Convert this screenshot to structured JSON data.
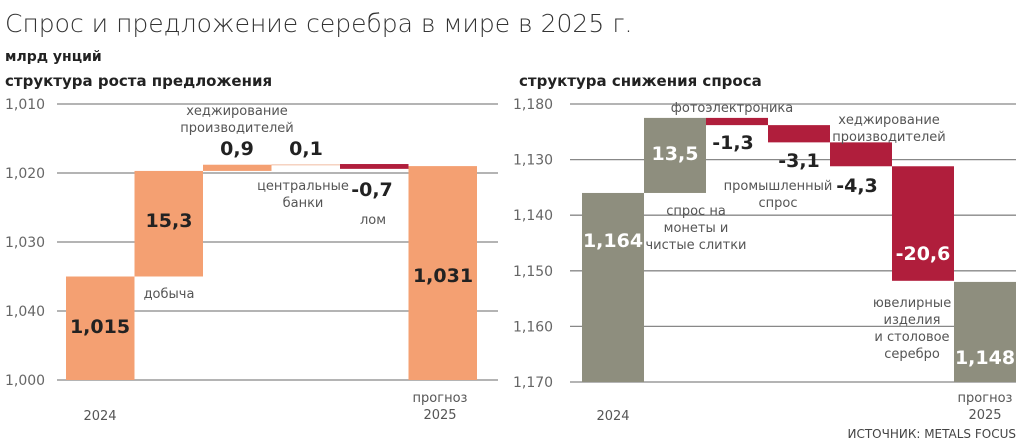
{
  "title": "Спрос и предложение серебра в мире в 2025 г.",
  "unit": "млрд унций",
  "source": "ИСТОЧНИК: METALS FOCUS",
  "colors": {
    "supply": "#f4a072",
    "decline": "#b01e3c",
    "demand": "#8e8e7e",
    "minor": "#f6d2c0",
    "grid": "#888888"
  },
  "chart_data": [
    {
      "type": "bar",
      "subtype": "waterfall",
      "subtitle": "структура роста предложения",
      "ylim": [
        1000,
        1040
      ],
      "tick_labels": [
        "1,010",
        "1,020",
        "1,030",
        "1,040",
        "1,000"
      ],
      "grid": true,
      "steps": [
        {
          "label": "2024",
          "value": 1015,
          "display": "1,015",
          "kind": "total"
        },
        {
          "label": "добыча",
          "value": 15.3,
          "display": "15,3",
          "kind": "delta"
        },
        {
          "label": "хеджирование\nпроизводителей",
          "value": 0.9,
          "display": "0,9",
          "kind": "delta"
        },
        {
          "label": "центральные\nбанки",
          "value": 0.1,
          "display": "0,1",
          "kind": "delta"
        },
        {
          "label": "лом",
          "value": -0.7,
          "display": "-0,7",
          "kind": "delta"
        },
        {
          "label": "прогноз\n2025",
          "value": 1031,
          "display": "1,031",
          "kind": "total"
        }
      ]
    },
    {
      "type": "bar",
      "subtype": "waterfall",
      "subtitle": "структура снижения спроса",
      "ylim": [
        1130,
        1180
      ],
      "tick_labels": [
        "1,180",
        "1,130",
        "1,140",
        "1,150",
        "1,160",
        "1,170"
      ],
      "grid": true,
      "steps": [
        {
          "label": "2024",
          "value": 1164,
          "display": "1,164",
          "kind": "total"
        },
        {
          "label": "спрос на\nмонеты и\nчистые слитки",
          "value": 13.5,
          "display": "13,5",
          "kind": "delta"
        },
        {
          "label": "фотоэлектроника",
          "value": -1.3,
          "display": "-1,3",
          "kind": "delta"
        },
        {
          "label": "промышленный\nспрос",
          "value": -3.1,
          "display": "-3,1",
          "kind": "delta"
        },
        {
          "label": "хеджирование\nпроизводителей",
          "value": -4.3,
          "display": "-4,3",
          "kind": "delta"
        },
        {
          "label": "ювелирные\nизделия\nи столовое\nсеребро",
          "value": -20.6,
          "display": "-20,6",
          "kind": "delta"
        },
        {
          "label": "прогноз\n2025",
          "value": 1148,
          "display": "1,148",
          "kind": "total"
        }
      ]
    }
  ]
}
